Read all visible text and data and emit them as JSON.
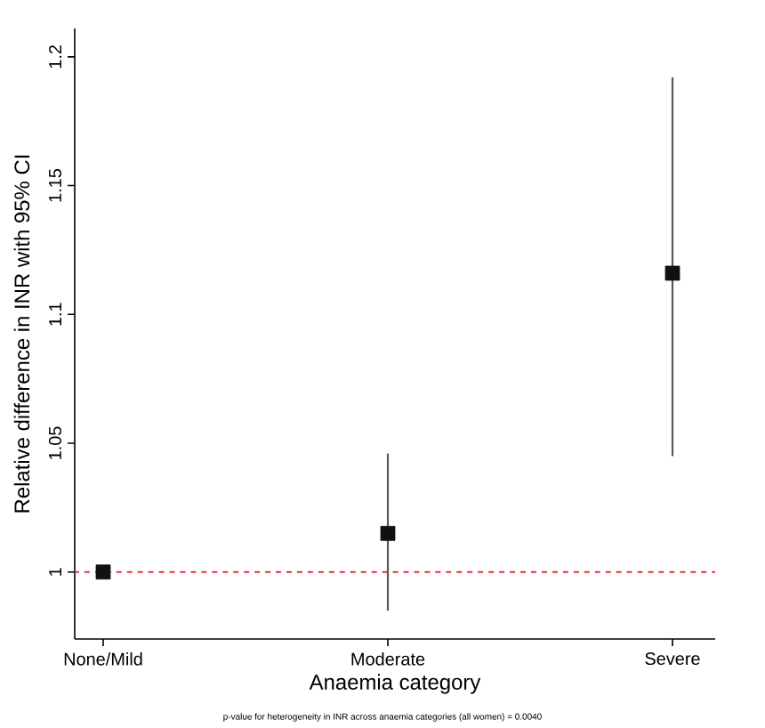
{
  "chart_data": {
    "type": "scatter",
    "xlabel": "Anaemia category",
    "ylabel": "Relative difference in INR with 95% CI",
    "categories": [
      "None/Mild",
      "Moderate",
      "Severe"
    ],
    "values": [
      1,
      1.015,
      1.116
    ],
    "errors": [
      null,
      [
        0.985,
        1.046
      ],
      [
        1.045,
        1.192
      ]
    ],
    "color": "#111111",
    "marker": "square",
    "ylim": [
      0.974,
      1.211
    ],
    "yticks": [
      1,
      1.05,
      1.1,
      1.15,
      1.2
    ],
    "ref_lines": [
      {
        "axis": "y",
        "value": 1,
        "color": "#e03040",
        "line_style": "dashed"
      }
    ],
    "annotations": [
      "p-value for heterogeneity in INR across anaemia categories (all women) = 0.0040"
    ],
    "grid": false
  }
}
